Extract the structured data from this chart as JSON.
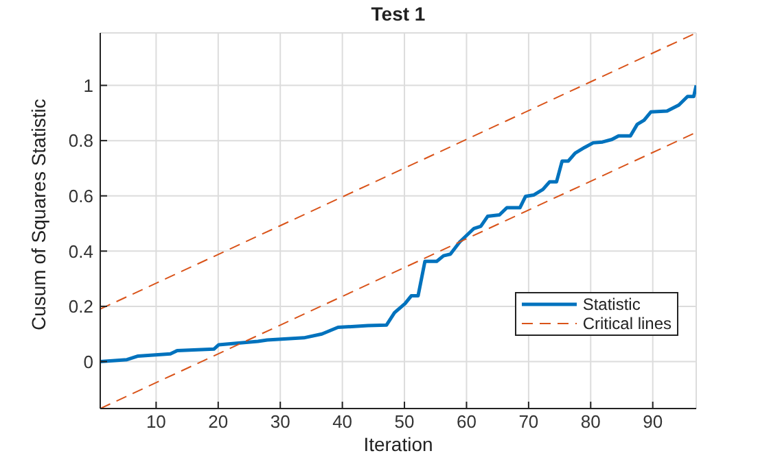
{
  "chart_data": {
    "type": "line",
    "title": "Test 1",
    "xlabel": "Iteration",
    "ylabel": "Cusum of Squares Statistic",
    "xlim": [
      1,
      97
    ],
    "ylim": [
      -0.17,
      1.19
    ],
    "xticks": [
      10,
      20,
      30,
      40,
      50,
      60,
      70,
      80,
      90
    ],
    "yticks": [
      0,
      0.2,
      0.4,
      0.6,
      0.8,
      1
    ],
    "grid": true,
    "legend": "bottom right",
    "marker": "none",
    "series": [
      {
        "name": "Statistic",
        "color": "#0072bd",
        "line_style": "solid",
        "x": [
          1,
          5.3,
          7.1,
          12.3,
          13.4,
          19.3,
          20.1,
          26.4,
          27.9,
          33.8,
          36.7,
          39.3,
          44.1,
          47.1,
          48.4,
          50.1,
          51.1,
          52.2,
          53.3,
          55.2,
          56.3,
          57.4,
          58.9,
          61.2,
          62.3,
          63.4,
          65.3,
          66.5,
          68.6,
          69.5,
          70.8,
          72.3,
          73.4,
          74.5,
          75.4,
          76.4,
          77.5,
          79,
          80.4,
          81.9,
          83.4,
          84.5,
          86.4,
          87.5,
          88.6,
          89.7,
          92.3,
          94.2,
          95.6,
          96.6,
          97
        ],
        "values": [
          0,
          0.007,
          0.02,
          0.028,
          0.04,
          0.045,
          0.061,
          0.073,
          0.078,
          0.086,
          0.1,
          0.124,
          0.13,
          0.132,
          0.177,
          0.21,
          0.238,
          0.238,
          0.363,
          0.363,
          0.383,
          0.389,
          0.433,
          0.482,
          0.49,
          0.526,
          0.531,
          0.557,
          0.557,
          0.598,
          0.603,
          0.623,
          0.651,
          0.651,
          0.726,
          0.726,
          0.755,
          0.775,
          0.792,
          0.795,
          0.804,
          0.817,
          0.817,
          0.859,
          0.874,
          0.904,
          0.907,
          0.929,
          0.96,
          0.96,
          1
        ]
      },
      {
        "name": "Critical lines",
        "color": "#d95319",
        "line_style": "dashed",
        "x": [
          1,
          97
        ],
        "values": [
          0.19,
          1.19
        ]
      },
      {
        "color": "#d95319",
        "line_style": "dashed",
        "x": [
          1,
          97
        ],
        "values": [
          -0.17,
          0.83
        ]
      }
    ]
  }
}
